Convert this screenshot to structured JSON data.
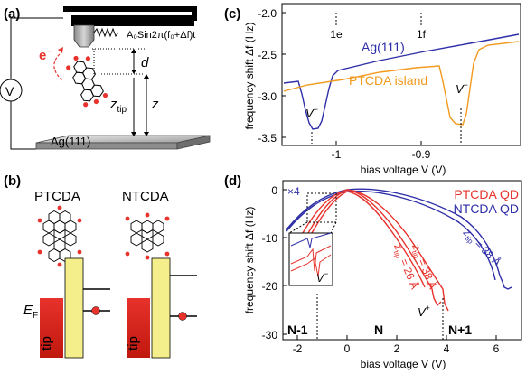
{
  "panels": {
    "a": {
      "label": "(a)",
      "electron": "e",
      "electron_sup": "−",
      "osc_formula": "A₀Sin2π(f₀+Δf)t",
      "d": "d",
      "z": "z",
      "ztip_main": "z",
      "ztip_sub": "tip",
      "voltage": "V",
      "surface": "Ag(111)"
    },
    "b": {
      "label": "(b)",
      "mol1": "PTCDA",
      "mol2": "NTCDA",
      "ef_main": "E",
      "ef_sub": "F",
      "tip1": "tip",
      "tip2": "tip"
    },
    "c": {
      "label": "(c)",
      "ylabel": "frequency shift Δf (Hz)",
      "xlabel": "bias voltage V (V)",
      "yticks": [
        "-2.0",
        "-2.5",
        "-3.0",
        "-3.5"
      ],
      "xticks": [
        "-1",
        "-0.9"
      ],
      "series_labels": [
        "Ag(111)",
        "PTCDA island"
      ],
      "ann_1e": "1e",
      "ann_1f": "1f",
      "ann_v1": "V",
      "ann_v2": "V",
      "colors": {
        "ag": "#2e2ea8",
        "ptcda": "#f29a1e"
      }
    },
    "d": {
      "label": "(d)",
      "ylabel": "frequency shift Δf (Hz)",
      "xlabel": "bias voltage V (V)",
      "yticks": [
        "0",
        "-10",
        "-20",
        "-30"
      ],
      "xticks": [
        "-2",
        "0",
        "2",
        "4",
        "6"
      ],
      "legend": [
        "PTCDA QD",
        "NTCDA QD"
      ],
      "x4": "×4",
      "ztip_blue": "z",
      "ztip_blue_rest": " = 38 Å",
      "ztip_red1": "z",
      "ztip_red1_rest": " = 26 Å",
      "ztip_red2": "z",
      "ztip_red2_rest": " = 38 Å",
      "tip_sub": "tip",
      "vplus": "V",
      "vminus": "V",
      "regions": [
        "N-1",
        "N",
        "N+1"
      ],
      "colors": {
        "ptcda": "#e8322c",
        "ntcda": "#2e2ea8"
      }
    }
  }
}
